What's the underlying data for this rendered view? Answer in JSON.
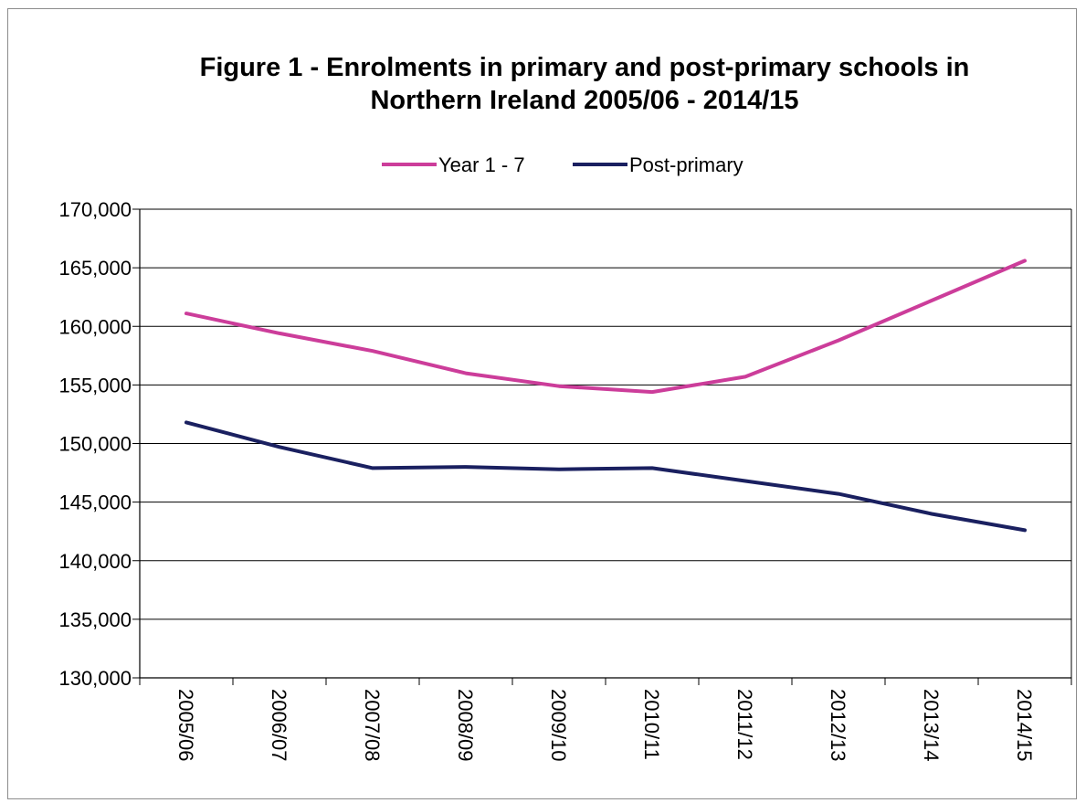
{
  "chart_data": {
    "type": "line",
    "title_lines": [
      "Figure 1 - Enrolments in primary and post-primary schools in",
      "Northern Ireland 2005/06 - 2014/15"
    ],
    "xlabel": "",
    "ylabel": "",
    "categories": [
      "2005/06",
      "2006/07",
      "2007/08",
      "2008/09",
      "2009/10",
      "2010/11",
      "2011/12",
      "2012/13",
      "2013/14",
      "2014/15"
    ],
    "y_ticks": [
      "130,000",
      "135,000",
      "140,000",
      "145,000",
      "150,000",
      "155,000",
      "160,000",
      "165,000",
      "170,000"
    ],
    "ylim": [
      130000,
      170000
    ],
    "ystep": 5000,
    "grid": true,
    "legend_position": "top",
    "series": [
      {
        "name": "Year 1 - 7",
        "color": "#cc3d9a",
        "values": [
          161100,
          159400,
          157900,
          156000,
          154900,
          154400,
          155700,
          158800,
          162200,
          165600
        ]
      },
      {
        "name": "Post-primary",
        "color": "#1a2060",
        "values": [
          151800,
          149700,
          147900,
          148000,
          147800,
          147900,
          146800,
          145700,
          144000,
          142600
        ]
      }
    ]
  }
}
